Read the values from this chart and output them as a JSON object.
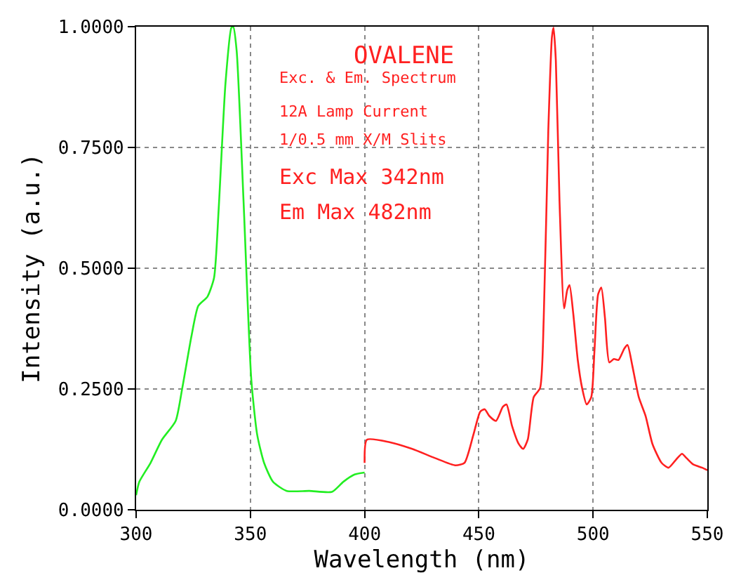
{
  "chart_data": {
    "type": "line",
    "title": "OVALENE",
    "xlabel": "Wavelength (nm)",
    "ylabel": "Intensity (a.u.)",
    "annotations": [
      "Exc. & Em. Spectrum",
      "12A Lamp Current",
      "1/0.5 mm X/M Slits",
      "Exc Max 342nm",
      "Em Max 482nm"
    ],
    "xlim": [
      300,
      550
    ],
    "xticks": [
      300,
      350,
      400,
      450,
      500,
      550
    ],
    "ylim": [
      0,
      1
    ],
    "yticks": [
      {
        "value": 0,
        "label": "0.0000"
      },
      {
        "value": 0.25,
        "label": "0.2500"
      },
      {
        "value": 0.5,
        "label": "0.5000"
      },
      {
        "value": 0.75,
        "label": "0.7500"
      },
      {
        "value": 1,
        "label": "1.0000"
      }
    ],
    "grid": true,
    "marker": "none",
    "line_style": "solid",
    "series": [
      {
        "color": "#22ee22",
        "x": [
          300,
          301.4,
          306.3,
          311.3,
          317.3,
          320.2,
          324.2,
          327.2,
          331.2,
          334.1,
          336.1,
          339.1,
          341.7,
          342.5,
          344,
          347,
          350.4,
          353,
          356,
          359.9,
          365.9,
          375.8,
          385.7,
          390.7,
          395.6,
          400
        ],
        "values": [
          0.03,
          0.058,
          0.097,
          0.145,
          0.184,
          0.252,
          0.359,
          0.422,
          0.441,
          0.48,
          0.62,
          0.882,
          0.998,
          1.0,
          0.95,
          0.64,
          0.27,
          0.155,
          0.097,
          0.058,
          0.039,
          0.039,
          0.037,
          0.058,
          0.073,
          0.077
        ]
      },
      {
        "color": "#ff2020",
        "x": [
          400,
          401,
          410.9,
          420.8,
          430.8,
          439.7,
          443.7,
          447.6,
          450.6,
          452.6,
          454.6,
          457.5,
          460.5,
          462.1,
          464.5,
          467.5,
          469.4,
          471.4,
          474,
          476.8,
          478.4,
          480.4,
          482,
          482.7,
          483.7,
          485.3,
          487.3,
          488.7,
          489.7,
          491.3,
          493.3,
          495.2,
          497.2,
          499.2,
          500.6,
          502.2,
          503.6,
          505.2,
          507.1,
          509.1,
          511.1,
          513.7,
          515.1,
          517.1,
          520,
          523,
          526,
          530,
          533,
          536,
          538.9,
          540.9,
          543.8,
          547.8,
          550
        ],
        "values": [
          0.097,
          0.145,
          0.14,
          0.126,
          0.107,
          0.092,
          0.097,
          0.155,
          0.203,
          0.208,
          0.194,
          0.184,
          0.213,
          0.218,
          0.174,
          0.136,
          0.126,
          0.145,
          0.233,
          0.252,
          0.397,
          0.785,
          0.979,
          0.998,
          0.93,
          0.64,
          0.417,
          0.455,
          0.465,
          0.407,
          0.31,
          0.252,
          0.218,
          0.233,
          0.329,
          0.446,
          0.46,
          0.397,
          0.305,
          0.312,
          0.31,
          0.334,
          0.341,
          0.3,
          0.233,
          0.194,
          0.136,
          0.097,
          0.087,
          0.102,
          0.116,
          0.107,
          0.094,
          0.087,
          0.082
        ]
      }
    ]
  }
}
